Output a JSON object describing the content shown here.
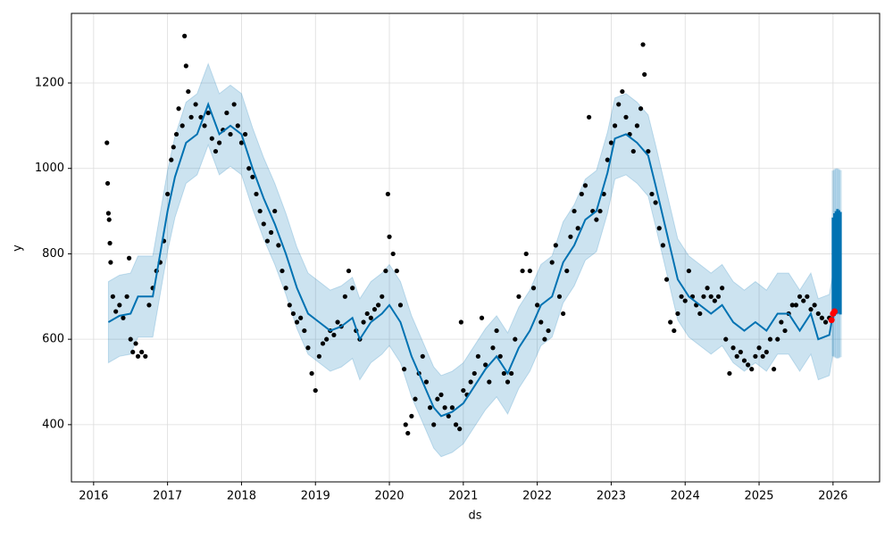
{
  "chart_data": {
    "type": "line",
    "x_label": "ds",
    "y_label": "y",
    "xlim": [
      2015.7,
      2026.63
    ],
    "ylim": [
      266,
      1363
    ],
    "xticks": [
      2016,
      2017,
      2018,
      2019,
      2020,
      2021,
      2022,
      2023,
      2024,
      2025,
      2026
    ],
    "yticks": [
      400,
      600,
      800,
      1000,
      1200
    ],
    "grid": true,
    "forecast": {
      "color": "#0072B2",
      "band_color": "rgba(0,114,178,0.2)",
      "x": [
        2016.2,
        2016.35,
        2016.5,
        2016.6,
        2016.8,
        2017.0,
        2017.1,
        2017.25,
        2017.4,
        2017.55,
        2017.7,
        2017.85,
        2018.0,
        2018.15,
        2018.3,
        2018.45,
        2018.6,
        2018.75,
        2018.9,
        2019.05,
        2019.2,
        2019.35,
        2019.5,
        2019.6,
        2019.75,
        2019.9,
        2020.0,
        2020.15,
        2020.3,
        2020.45,
        2020.6,
        2020.7,
        2020.85,
        2021.0,
        2021.15,
        2021.3,
        2021.45,
        2021.6,
        2021.75,
        2021.9,
        2022.05,
        2022.2,
        2022.35,
        2022.5,
        2022.65,
        2022.8,
        2022.95,
        2023.05,
        2023.2,
        2023.35,
        2023.5,
        2023.6,
        2023.75,
        2023.9,
        2024.05,
        2024.2,
        2024.35,
        2024.5,
        2024.65,
        2024.8,
        2024.95,
        2025.1,
        2025.25,
        2025.4,
        2025.55,
        2025.7,
        2025.8,
        2025.95,
        2026.0
      ],
      "values": [
        640,
        655,
        660,
        700,
        700,
        900,
        980,
        1060,
        1080,
        1150,
        1080,
        1100,
        1080,
        1000,
        930,
        870,
        800,
        720,
        660,
        640,
        620,
        630,
        650,
        600,
        640,
        660,
        680,
        640,
        560,
        500,
        440,
        420,
        430,
        450,
        490,
        530,
        560,
        520,
        580,
        620,
        680,
        700,
        780,
        820,
        880,
        900,
        990,
        1070,
        1080,
        1060,
        1030,
        960,
        850,
        740,
        700,
        680,
        660,
        680,
        640,
        620,
        640,
        620,
        660,
        660,
        620,
        660,
        600,
        610,
        660
      ],
      "lower": [
        545,
        560,
        565,
        605,
        605,
        805,
        885,
        965,
        985,
        1055,
        985,
        1005,
        985,
        905,
        835,
        775,
        705,
        625,
        565,
        545,
        525,
        535,
        555,
        505,
        545,
        565,
        585,
        545,
        465,
        405,
        345,
        325,
        335,
        355,
        395,
        435,
        465,
        425,
        485,
        525,
        585,
        605,
        685,
        725,
        785,
        805,
        895,
        975,
        985,
        965,
        935,
        865,
        755,
        645,
        605,
        585,
        565,
        585,
        545,
        525,
        545,
        525,
        565,
        565,
        525,
        565,
        505,
        515,
        565
      ],
      "upper": [
        735,
        750,
        755,
        795,
        795,
        995,
        1075,
        1155,
        1175,
        1245,
        1175,
        1195,
        1175,
        1095,
        1025,
        965,
        895,
        815,
        755,
        735,
        715,
        725,
        745,
        695,
        735,
        755,
        775,
        735,
        655,
        595,
        535,
        515,
        525,
        545,
        585,
        625,
        655,
        615,
        675,
        715,
        775,
        795,
        875,
        915,
        975,
        995,
        1085,
        1165,
        1175,
        1155,
        1125,
        1055,
        945,
        835,
        795,
        775,
        755,
        775,
        735,
        715,
        735,
        715,
        755,
        755,
        715,
        755,
        695,
        705,
        755
      ]
    },
    "future": {
      "color": "#0072B2",
      "band_color": "rgba(0,114,178,0.2)",
      "x": [
        2026.0,
        2026.02,
        2026.04,
        2026.06,
        2026.08,
        2026.1
      ],
      "lower": [
        650,
        655,
        658,
        660,
        660,
        658
      ],
      "upper": [
        885,
        895,
        900,
        905,
        902,
        898
      ],
      "band_lower": [
        560,
        558,
        556,
        555,
        556,
        558
      ],
      "band_upper": [
        995,
        998,
        1000,
        1000,
        998,
        996
      ]
    },
    "observed": {
      "color": "#000000",
      "x": [
        2016.18,
        2016.19,
        2016.2,
        2016.21,
        2016.22,
        2016.23,
        2016.26,
        2016.3,
        2016.35,
        2016.4,
        2016.45,
        2016.48,
        2016.5,
        2016.53,
        2016.57,
        2016.6,
        2016.65,
        2016.7,
        2016.75,
        2016.8,
        2016.85,
        2016.9,
        2016.95,
        2017.0,
        2017.05,
        2017.08,
        2017.12,
        2017.15,
        2017.2,
        2017.23,
        2017.25,
        2017.28,
        2017.32,
        2017.38,
        2017.45,
        2017.5,
        2017.55,
        2017.6,
        2017.65,
        2017.7,
        2017.75,
        2017.8,
        2017.85,
        2017.9,
        2017.95,
        2018.0,
        2018.05,
        2018.1,
        2018.15,
        2018.2,
        2018.25,
        2018.3,
        2018.35,
        2018.4,
        2018.45,
        2018.5,
        2018.55,
        2018.6,
        2018.65,
        2018.7,
        2018.75,
        2018.8,
        2018.85,
        2018.9,
        2018.95,
        2019.0,
        2019.05,
        2019.1,
        2019.15,
        2019.2,
        2019.25,
        2019.3,
        2019.35,
        2019.4,
        2019.45,
        2019.5,
        2019.55,
        2019.6,
        2019.65,
        2019.7,
        2019.75,
        2019.8,
        2019.85,
        2019.9,
        2019.95,
        2019.98,
        2020.0,
        2020.05,
        2020.1,
        2020.15,
        2020.2,
        2020.22,
        2020.25,
        2020.3,
        2020.35,
        2020.4,
        2020.45,
        2020.5,
        2020.55,
        2020.6,
        2020.65,
        2020.7,
        2020.75,
        2020.8,
        2020.85,
        2020.9,
        2020.95,
        2020.97,
        2021.0,
        2021.05,
        2021.1,
        2021.15,
        2021.2,
        2021.25,
        2021.3,
        2021.35,
        2021.4,
        2021.45,
        2021.5,
        2021.55,
        2021.6,
        2021.65,
        2021.7,
        2021.75,
        2021.8,
        2021.85,
        2021.9,
        2021.95,
        2022.0,
        2022.05,
        2022.1,
        2022.15,
        2022.2,
        2022.25,
        2022.3,
        2022.35,
        2022.4,
        2022.45,
        2022.5,
        2022.55,
        2022.6,
        2022.65,
        2022.7,
        2022.75,
        2022.8,
        2022.85,
        2022.9,
        2022.95,
        2023.0,
        2023.05,
        2023.1,
        2023.15,
        2023.2,
        2023.25,
        2023.3,
        2023.35,
        2023.4,
        2023.43,
        2023.45,
        2023.5,
        2023.55,
        2023.6,
        2023.65,
        2023.7,
        2023.75,
        2023.8,
        2023.85,
        2023.9,
        2023.95,
        2024.0,
        2024.05,
        2024.1,
        2024.15,
        2024.2,
        2024.25,
        2024.3,
        2024.35,
        2024.4,
        2024.45,
        2024.5,
        2024.55,
        2024.6,
        2024.65,
        2024.7,
        2024.75,
        2024.8,
        2024.85,
        2024.9,
        2024.95,
        2025.0,
        2025.05,
        2025.1,
        2025.15,
        2025.2,
        2025.25,
        2025.3,
        2025.35,
        2025.4,
        2025.45,
        2025.5,
        2025.55,
        2025.6,
        2025.65,
        2025.7,
        2025.75,
        2025.8,
        2025.85,
        2025.9,
        2025.95
      ],
      "values": [
        1060,
        965,
        895,
        880,
        825,
        780,
        700,
        665,
        680,
        650,
        700,
        790,
        600,
        570,
        590,
        560,
        570,
        560,
        680,
        720,
        760,
        780,
        830,
        940,
        1020,
        1050,
        1080,
        1140,
        1100,
        1310,
        1240,
        1180,
        1120,
        1150,
        1120,
        1100,
        1130,
        1070,
        1040,
        1060,
        1090,
        1130,
        1080,
        1150,
        1100,
        1060,
        1080,
        1000,
        980,
        940,
        900,
        870,
        830,
        850,
        900,
        820,
        760,
        720,
        680,
        660,
        640,
        650,
        620,
        580,
        520,
        480,
        560,
        590,
        600,
        620,
        610,
        640,
        630,
        700,
        760,
        720,
        620,
        600,
        640,
        660,
        650,
        670,
        680,
        700,
        760,
        940,
        840,
        800,
        760,
        680,
        530,
        400,
        380,
        420,
        460,
        520,
        560,
        500,
        440,
        400,
        460,
        470,
        440,
        420,
        440,
        400,
        390,
        640,
        480,
        470,
        500,
        520,
        560,
        650,
        540,
        500,
        580,
        620,
        560,
        520,
        500,
        520,
        600,
        700,
        760,
        800,
        760,
        720,
        680,
        640,
        600,
        620,
        780,
        820,
        700,
        660,
        760,
        840,
        900,
        860,
        940,
        960,
        1120,
        900,
        880,
        900,
        940,
        1020,
        1060,
        1100,
        1150,
        1180,
        1120,
        1080,
        1040,
        1100,
        1140,
        1290,
        1220,
        1040,
        940,
        920,
        860,
        820,
        740,
        640,
        620,
        660,
        700,
        690,
        760,
        700,
        680,
        660,
        700,
        720,
        700,
        690,
        700,
        720,
        600,
        520,
        580,
        560,
        570,
        550,
        540,
        530,
        560,
        580,
        560,
        570,
        600,
        530,
        600,
        640,
        620,
        660,
        680,
        680,
        700,
        690,
        700,
        670,
        680,
        660,
        650,
        640,
        650
      ]
    },
    "recent": {
      "color": "#ff0000",
      "x": [
        2025.98,
        2026.0,
        2026.02
      ],
      "values": [
        645,
        660,
        665
      ]
    }
  }
}
